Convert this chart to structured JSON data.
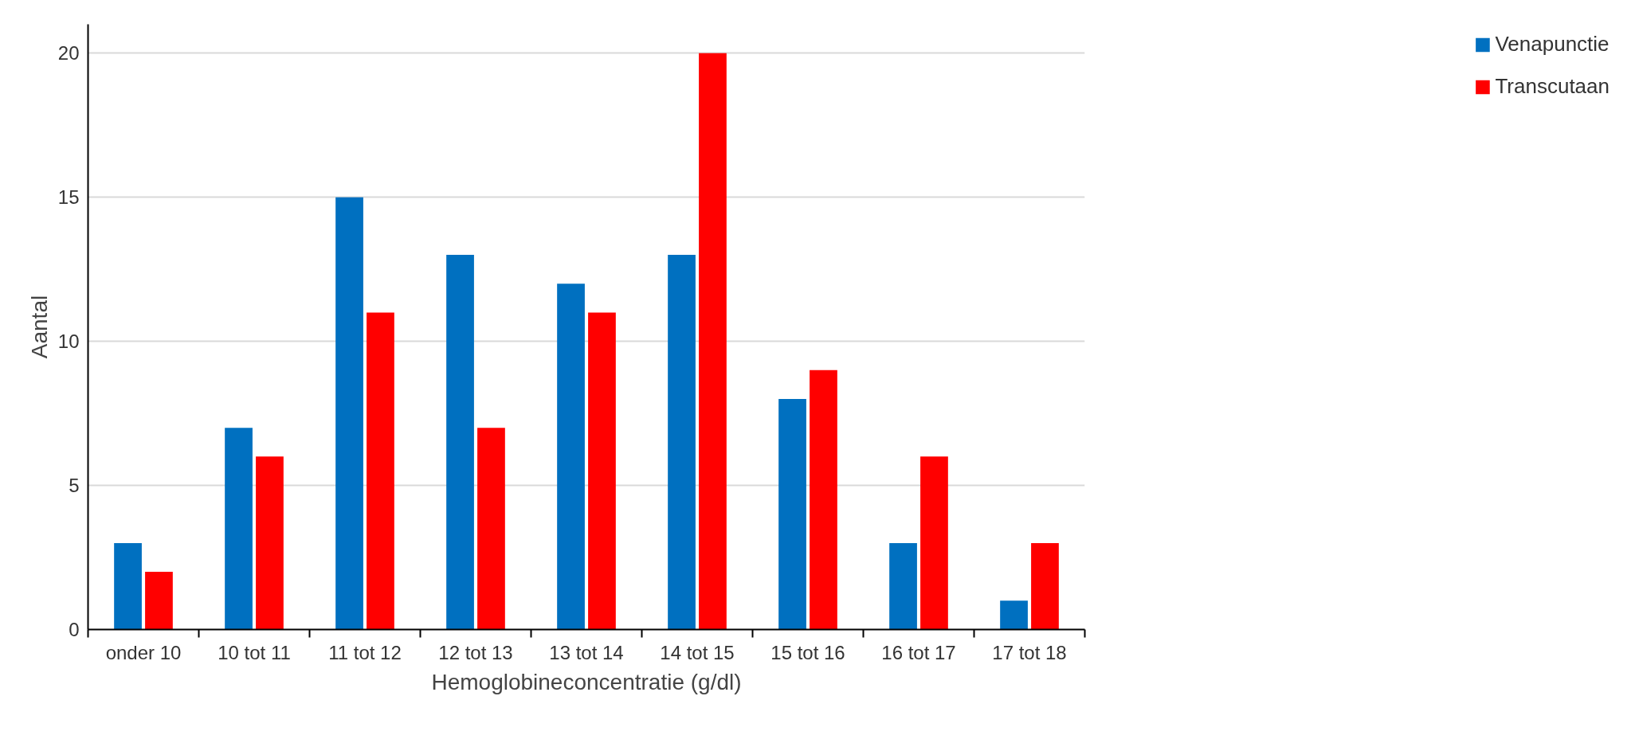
{
  "chart_data": {
    "type": "bar",
    "xlabel": "Hemoglobineconcentratie (g/dl)",
    "ylabel": "Aantal",
    "categories": [
      "onder 10",
      "10 tot 11",
      "11 tot 12",
      "12 tot 13",
      "13 tot 14",
      "14 tot 15",
      "15 tot 16",
      "16 tot 17",
      "17 tot 18"
    ],
    "series": [
      {
        "name": "Venapunctie",
        "color": "#0070c0",
        "values": [
          3,
          7,
          15,
          13,
          12,
          13,
          8,
          3,
          1
        ]
      },
      {
        "name": "Transcutaan",
        "color": "#ff0000",
        "values": [
          2,
          6,
          11,
          7,
          11,
          20,
          9,
          6,
          3
        ]
      }
    ],
    "ylim": [
      0,
      21
    ],
    "yticks": [
      0,
      5,
      10,
      15,
      20
    ],
    "grid": "y",
    "legend": "right"
  }
}
